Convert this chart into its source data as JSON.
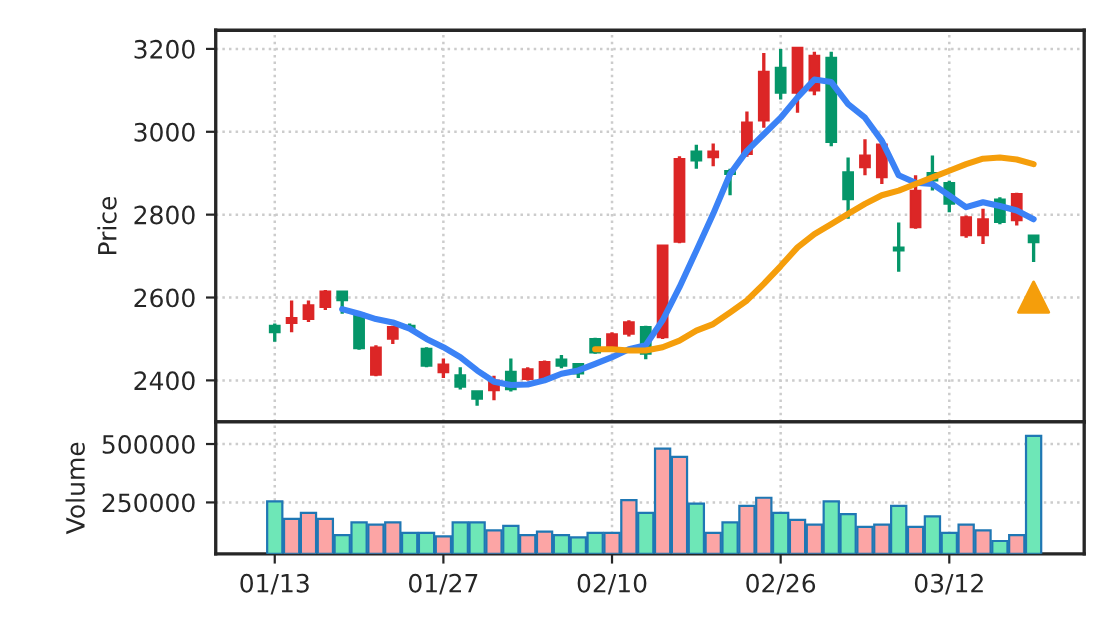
{
  "chart_data": [
    {
      "type": "candlestick",
      "ylabel": "Price",
      "categories": [
        null,
        null,
        null,
        null,
        null,
        null,
        null,
        null,
        null,
        null,
        null,
        null,
        null,
        null,
        null,
        null,
        null,
        null,
        null,
        null,
        null,
        null,
        null,
        null,
        null,
        null,
        null,
        null,
        null,
        null,
        null,
        null,
        null,
        null,
        null,
        null,
        null,
        null,
        null,
        null,
        null,
        null,
        null,
        null,
        null,
        null
      ],
      "ohlc": [
        [
          2532,
          2537,
          2493,
          2516
        ],
        [
          2538,
          2593,
          2516,
          2551
        ],
        [
          2548,
          2593,
          2541,
          2582
        ],
        [
          2577,
          2618,
          2570,
          2615
        ],
        [
          2615,
          2615,
          2561,
          2593
        ],
        [
          2561,
          2561,
          2474,
          2477
        ],
        [
          2413,
          2485,
          2410,
          2480
        ],
        [
          2500,
          2532,
          2488,
          2529
        ],
        [
          2532,
          2537,
          2520,
          2525
        ],
        [
          2477,
          2480,
          2432,
          2435
        ],
        [
          2419,
          2453,
          2406,
          2439
        ],
        [
          2413,
          2432,
          2378,
          2384
        ],
        [
          2374,
          2374,
          2339,
          2355
        ],
        [
          2376,
          2411,
          2352,
          2400
        ],
        [
          2421,
          2453,
          2373,
          2378
        ],
        [
          2403,
          2432,
          2400,
          2427
        ],
        [
          2403,
          2448,
          2400,
          2445
        ],
        [
          2451,
          2461,
          2429,
          2435
        ],
        [
          2440,
          2442,
          2406,
          2416
        ],
        [
          2500,
          2503,
          2464,
          2467
        ],
        [
          2475,
          2516,
          2471,
          2512
        ],
        [
          2512,
          2545,
          2506,
          2541
        ],
        [
          2529,
          2532,
          2451,
          2464
        ],
        [
          2504,
          2726,
          2500,
          2726
        ],
        [
          2734,
          2941,
          2731,
          2935
        ],
        [
          2953,
          2969,
          2911,
          2930
        ],
        [
          2938,
          2972,
          2917,
          2953
        ],
        [
          2906,
          2911,
          2847,
          2898
        ],
        [
          2946,
          3049,
          2940,
          3023
        ],
        [
          3027,
          3190,
          3010,
          3145
        ],
        [
          3155,
          3200,
          3078,
          3094
        ],
        [
          3094,
          3203,
          3046,
          3203
        ],
        [
          3099,
          3193,
          3088,
          3184
        ],
        [
          3179,
          3193,
          2965,
          2975
        ],
        [
          2903,
          2938,
          2790,
          2837
        ],
        [
          2914,
          2982,
          2895,
          2943
        ],
        [
          2890,
          2974,
          2874,
          2970
        ],
        [
          2721,
          2781,
          2662,
          2713
        ],
        [
          2769,
          2895,
          2766,
          2858
        ],
        [
          2901,
          2943,
          2858,
          2882
        ],
        [
          2877,
          2882,
          2806,
          2826
        ],
        [
          2750,
          2798,
          2744,
          2794
        ],
        [
          2750,
          2814,
          2729,
          2789
        ],
        [
          2837,
          2842,
          2777,
          2782
        ],
        [
          2786,
          2853,
          2774,
          2850
        ],
        [
          2750,
          2750,
          2686,
          2733
        ]
      ],
      "colors": [
        "#059669",
        "#dc2626",
        "#dc2626",
        "#dc2626",
        "#059669",
        "#059669",
        "#dc2626",
        "#dc2626",
        "#059669",
        "#059669",
        "#dc2626",
        "#059669",
        "#059669",
        "#dc2626",
        "#059669",
        "#dc2626",
        "#dc2626",
        "#059669",
        "#059669",
        "#059669",
        "#dc2626",
        "#dc2626",
        "#059669",
        "#dc2626",
        "#dc2626",
        "#059669",
        "#dc2626",
        "#059669",
        "#dc2626",
        "#dc2626",
        "#059669",
        "#dc2626",
        "#dc2626",
        "#059669",
        "#059669",
        "#dc2626",
        "#dc2626",
        "#059669",
        "#dc2626",
        "#059669",
        "#059669",
        "#dc2626",
        "#dc2626",
        "#059669",
        "#dc2626",
        "#059669"
      ],
      "series": [
        {
          "type": "line",
          "color": "#3b82f6",
          "values": [
            null,
            null,
            null,
            null,
            2572,
            2561,
            2548,
            2540,
            2525,
            2500,
            2480,
            2456,
            2424,
            2397,
            2389,
            2390,
            2400,
            2416,
            2424,
            2440,
            2456,
            2475,
            2485,
            2545,
            2625,
            2713,
            2802,
            2898,
            2954,
            2994,
            3034,
            3083,
            3126,
            3120,
            3067,
            3034,
            2978,
            2895,
            2877,
            2874,
            2846,
            2818,
            2830,
            2821,
            2810,
            2789
          ]
        },
        {
          "type": "line",
          "color": "#f59e0b",
          "values": [
            null,
            null,
            null,
            null,
            null,
            null,
            null,
            null,
            null,
            null,
            null,
            null,
            null,
            null,
            null,
            null,
            null,
            null,
            null,
            2475,
            2475,
            2472,
            2472,
            2480,
            2496,
            2520,
            2536,
            2564,
            2593,
            2633,
            2676,
            2721,
            2753,
            2777,
            2802,
            2826,
            2847,
            2858,
            2874,
            2890,
            2906,
            2922,
            2935,
            2938,
            2933,
            2922
          ]
        },
        {
          "type": "scatter",
          "marker": "triangle",
          "color": "#f59e0b",
          "values": [
            null,
            null,
            null,
            null,
            null,
            null,
            null,
            null,
            null,
            null,
            null,
            null,
            null,
            null,
            null,
            null,
            null,
            null,
            null,
            null,
            null,
            null,
            null,
            null,
            null,
            null,
            null,
            null,
            null,
            null,
            null,
            null,
            null,
            null,
            null,
            null,
            null,
            null,
            null,
            null,
            null,
            null,
            null,
            null,
            null,
            2601
          ]
        }
      ],
      "ylim": [
        2300,
        3245
      ],
      "yticks": [
        2400,
        2600,
        2800,
        3000,
        3200
      ],
      "grid": true,
      "tick_labels": "y"
    },
    {
      "type": "bar",
      "ylabel": "Volume",
      "categories": [
        "01/13",
        null,
        null,
        null,
        null,
        null,
        null,
        null,
        null,
        null,
        "01/27",
        null,
        null,
        null,
        null,
        null,
        null,
        null,
        null,
        null,
        "02/10",
        null,
        null,
        null,
        null,
        null,
        null,
        null,
        null,
        null,
        "02/26",
        null,
        null,
        null,
        null,
        null,
        null,
        null,
        null,
        null,
        "03/12",
        null,
        null,
        null,
        null,
        null
      ],
      "values": [
        255000,
        180000,
        205000,
        180000,
        110000,
        165000,
        155000,
        165000,
        120000,
        120000,
        105000,
        165000,
        165000,
        130000,
        150000,
        110000,
        125000,
        110000,
        100000,
        120000,
        120000,
        260000,
        205000,
        480000,
        445000,
        245000,
        120000,
        165000,
        235000,
        270000,
        205000,
        175000,
        155000,
        255000,
        200000,
        145000,
        155000,
        235000,
        145000,
        190000,
        120000,
        155000,
        130000,
        85000,
        110000,
        535000
      ],
      "colors": [
        "#6ee7b7",
        "#fca5a5",
        "#fca5a5",
        "#fca5a5",
        "#6ee7b7",
        "#6ee7b7",
        "#fca5a5",
        "#fca5a5",
        "#6ee7b7",
        "#6ee7b7",
        "#fca5a5",
        "#6ee7b7",
        "#6ee7b7",
        "#fca5a5",
        "#6ee7b7",
        "#fca5a5",
        "#fca5a5",
        "#6ee7b7",
        "#6ee7b7",
        "#6ee7b7",
        "#fca5a5",
        "#fca5a5",
        "#6ee7b7",
        "#fca5a5",
        "#fca5a5",
        "#6ee7b7",
        "#fca5a5",
        "#6ee7b7",
        "#fca5a5",
        "#fca5a5",
        "#6ee7b7",
        "#fca5a5",
        "#fca5a5",
        "#6ee7b7",
        "#6ee7b7",
        "#fca5a5",
        "#fca5a5",
        "#6ee7b7",
        "#fca5a5",
        "#6ee7b7",
        "#6ee7b7",
        "#fca5a5",
        "#fca5a5",
        "#6ee7b7",
        "#fca5a5",
        "#6ee7b7"
      ],
      "ylim": [
        30000,
        595000
      ],
      "yticks": [
        250000,
        500000
      ],
      "grid": true
    }
  ]
}
